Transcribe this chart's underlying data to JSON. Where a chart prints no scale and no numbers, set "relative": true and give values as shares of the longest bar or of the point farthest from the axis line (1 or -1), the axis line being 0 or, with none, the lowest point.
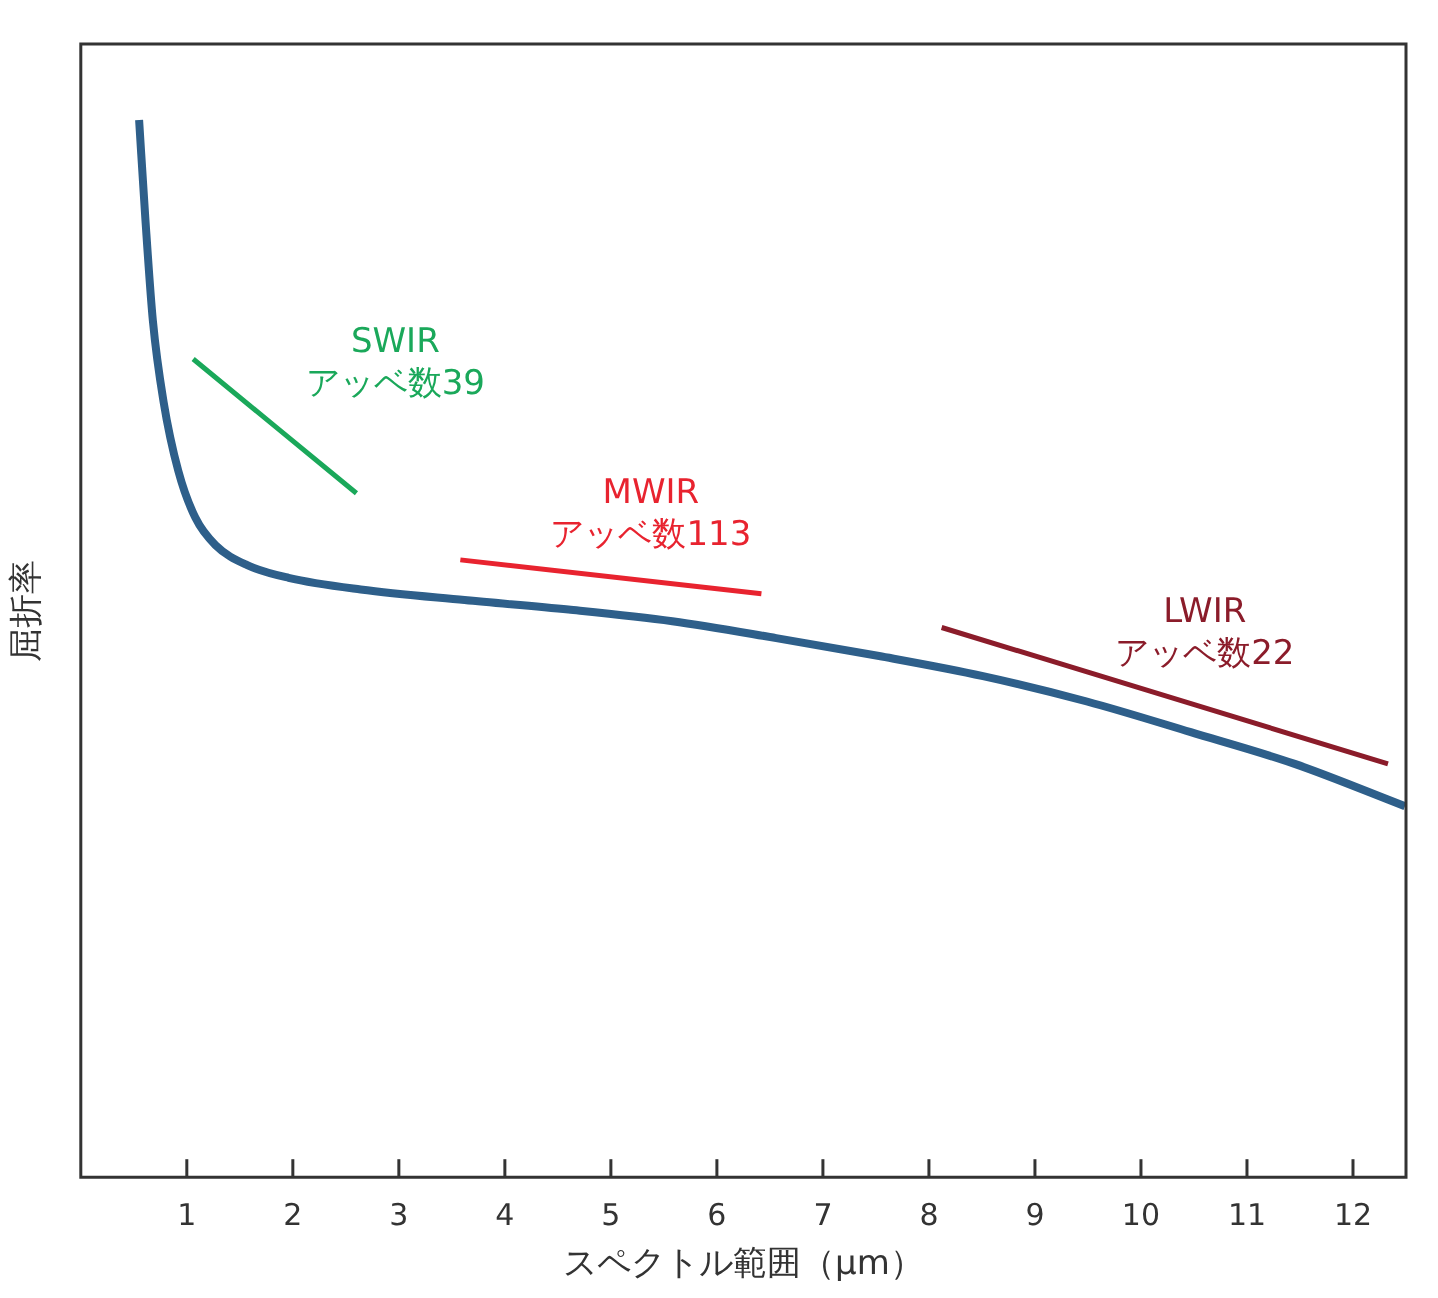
{
  "chart_data": {
    "type": "line",
    "relative": true,
    "xlabel": "スペクトル範囲（μm）",
    "ylabel": "屈折率",
    "xlim": [
      0,
      12.5
    ],
    "xticks": [
      1,
      2,
      3,
      4,
      5,
      6,
      7,
      8,
      9,
      10,
      11,
      12
    ],
    "tick_labels": "x",
    "series": [
      {
        "color": "#2e5f8a",
        "x": [
          0.55,
          0.61,
          0.68,
          0.78,
          0.92,
          1.08,
          1.27,
          1.57,
          1.96,
          2.64,
          3.62,
          4.6,
          5.58,
          6.56,
          7.53,
          8.51,
          9.49,
          10.47,
          11.45,
          12.49
        ],
        "values": [
          1.0,
          0.905,
          0.81,
          0.734,
          0.668,
          0.624,
          0.598,
          0.579,
          0.567,
          0.556,
          0.546,
          0.537,
          0.526,
          0.51,
          0.493,
          0.474,
          0.45,
          0.421,
          0.391,
          0.351
        ]
      },
      {
        "name": "SWIR アッベ数39",
        "color": "#1aa85a",
        "x": [
          1.06,
          2.6
        ],
        "values": [
          0.774,
          0.647
        ]
      },
      {
        "name": "MWIR アッベ数113",
        "color": "#e8232f",
        "x": [
          3.58,
          6.42
        ],
        "values": [
          0.584,
          0.552
        ]
      },
      {
        "name": "LWIR アッベ数22",
        "color": "#8b1c2a",
        "x": [
          8.12,
          12.33
        ],
        "values": [
          0.52,
          0.391
        ]
      }
    ]
  }
}
